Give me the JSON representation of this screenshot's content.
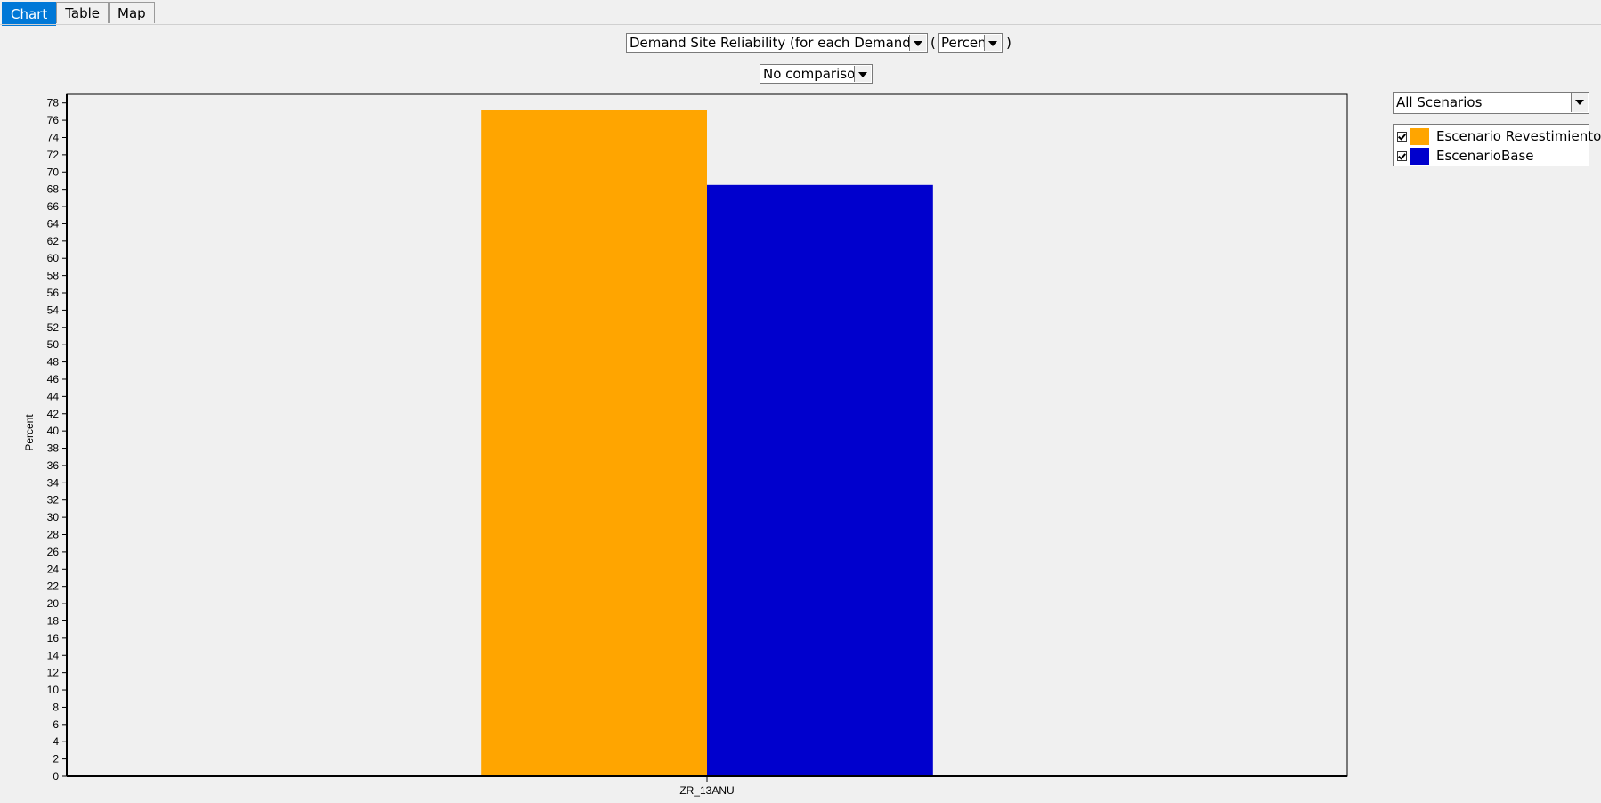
{
  "tabs": [
    {
      "label": "Chart",
      "active": true
    },
    {
      "label": "Table",
      "active": false
    },
    {
      "label": "Map",
      "active": false
    }
  ],
  "controls": {
    "variable": "Demand Site Reliability (for each Demand Site)",
    "open_paren": "(",
    "unit": "Percent",
    "close_paren": ")",
    "comparison": "No comparison",
    "scenario_filter": "All Scenarios"
  },
  "legend": [
    {
      "label": "Escenario Revestimiento",
      "color": "#ffa500",
      "checked": true
    },
    {
      "label": "EscenarioBase",
      "color": "#0000cd",
      "checked": true
    }
  ],
  "chart_data": {
    "type": "bar",
    "categories": [
      "ZR_13ANU"
    ],
    "series": [
      {
        "name": "Escenario Revestimiento",
        "values": [
          77.2
        ],
        "color": "#ffa500"
      },
      {
        "name": "EscenarioBase",
        "values": [
          68.5
        ],
        "color": "#0000cd"
      }
    ],
    "title": "",
    "xlabel": "",
    "ylabel": "Percent",
    "ylim": [
      0,
      79
    ],
    "ytick_step": 2,
    "grid": false,
    "legend_position": "right"
  }
}
